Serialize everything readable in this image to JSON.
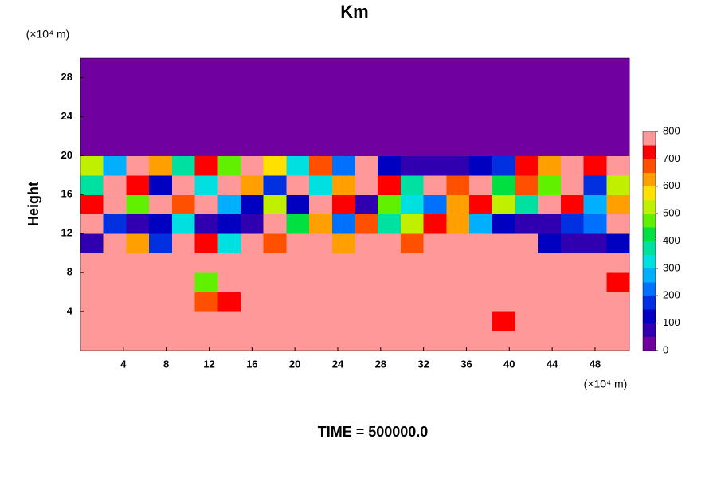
{
  "chart_data": {
    "type": "heatmap",
    "title": "Km",
    "y_label": "Height",
    "y_unit": "(×10⁴ m)",
    "x_unit": "(×10⁴ m)",
    "footer": "TIME = 500000.0",
    "xlim": [
      0,
      51.2
    ],
    "ylim": [
      0,
      30
    ],
    "xticks": [
      4,
      8,
      12,
      16,
      20,
      24,
      28,
      32,
      36,
      40,
      44,
      48
    ],
    "yticks": [
      4,
      8,
      12,
      16,
      20,
      24,
      28
    ],
    "levels": [
      0,
      50,
      100,
      150,
      200,
      250,
      300,
      350,
      400,
      450,
      500,
      550,
      600,
      650,
      700,
      750,
      800
    ],
    "colors": [
      "#7000a0",
      "#3000b0",
      "#0000c0",
      "#0030e0",
      "#0070ff",
      "#00b0ff",
      "#00e0e0",
      "#00e0a0",
      "#00e040",
      "#60f000",
      "#c0f000",
      "#ffe000",
      "#ffa000",
      "#ff5000",
      "#ff0000",
      "#ff9999"
    ],
    "cbar_ticks": [
      0,
      100,
      200,
      300,
      400,
      500,
      600,
      700,
      800
    ],
    "z": [
      [
        800,
        800,
        800,
        800,
        800,
        800,
        800,
        800,
        800,
        800,
        800,
        800,
        800,
        800,
        800,
        800,
        800,
        800,
        800,
        800,
        800,
        800,
        800,
        800
      ],
      [
        800,
        800,
        800,
        800,
        800,
        800,
        800,
        800,
        800,
        800,
        800,
        800,
        800,
        800,
        800,
        800,
        800,
        800,
        700,
        800,
        800,
        800,
        800,
        800
      ],
      [
        800,
        800,
        800,
        800,
        800,
        650,
        700,
        800,
        800,
        800,
        800,
        800,
        800,
        800,
        800,
        800,
        800,
        800,
        800,
        800,
        800,
        800,
        800,
        800
      ],
      [
        800,
        800,
        800,
        800,
        800,
        450,
        800,
        750,
        800,
        800,
        800,
        800,
        800,
        800,
        800,
        800,
        800,
        800,
        800,
        800,
        800,
        800,
        800,
        700
      ],
      [
        800,
        800,
        800,
        800,
        800,
        800,
        800,
        800,
        800,
        800,
        800,
        800,
        800,
        800,
        800,
        800,
        800,
        750,
        800,
        800,
        800,
        800,
        800,
        800
      ],
      [
        50,
        800,
        600,
        150,
        800,
        700,
        300,
        800,
        650,
        800,
        750,
        600,
        800,
        800,
        650,
        800,
        800,
        800,
        800,
        750,
        100,
        50,
        50,
        100
      ],
      [
        800,
        150,
        50,
        100,
        300,
        50,
        100,
        50,
        800,
        400,
        600,
        200,
        650,
        350,
        500,
        700,
        600,
        250,
        100,
        50,
        50,
        150,
        200,
        800
      ],
      [
        700,
        800,
        450,
        800,
        650,
        800,
        250,
        100,
        500,
        100,
        800,
        700,
        50,
        450,
        300,
        200,
        600,
        700,
        500,
        350,
        800,
        700,
        250,
        600
      ],
      [
        350,
        800,
        700,
        100,
        750,
        300,
        800,
        600,
        150,
        800,
        300,
        600,
        800,
        700,
        350,
        800,
        650,
        800,
        400,
        650,
        450,
        800,
        150,
        500
      ],
      [
        500,
        250,
        800,
        600,
        350,
        700,
        450,
        800,
        550,
        300,
        650,
        200,
        800,
        100,
        50,
        50,
        50,
        100,
        150,
        700,
        600,
        800,
        700,
        800
      ],
      [
        0,
        0,
        0,
        0,
        0,
        0,
        0,
        0,
        0,
        0,
        0,
        0,
        0,
        0,
        0,
        0,
        0,
        0,
        0,
        0,
        0,
        0,
        0,
        0
      ],
      [
        0,
        0,
        0,
        0,
        0,
        0,
        0,
        0,
        0,
        0,
        0,
        0,
        0,
        0,
        0,
        0,
        0,
        0,
        0,
        0,
        0,
        0,
        0,
        0
      ],
      [
        0,
        0,
        0,
        0,
        0,
        0,
        0,
        0,
        0,
        0,
        0,
        0,
        0,
        0,
        0,
        0,
        0,
        0,
        0,
        0,
        0,
        0,
        0,
        0
      ],
      [
        0,
        0,
        0,
        0,
        0,
        0,
        0,
        0,
        0,
        0,
        0,
        0,
        0,
        0,
        0,
        0,
        0,
        0,
        0,
        0,
        0,
        0,
        0,
        0
      ],
      [
        0,
        0,
        0,
        0,
        0,
        0,
        0,
        0,
        0,
        0,
        0,
        0,
        0,
        0,
        0,
        0,
        0,
        0,
        0,
        0,
        0,
        0,
        0,
        0
      ]
    ]
  }
}
